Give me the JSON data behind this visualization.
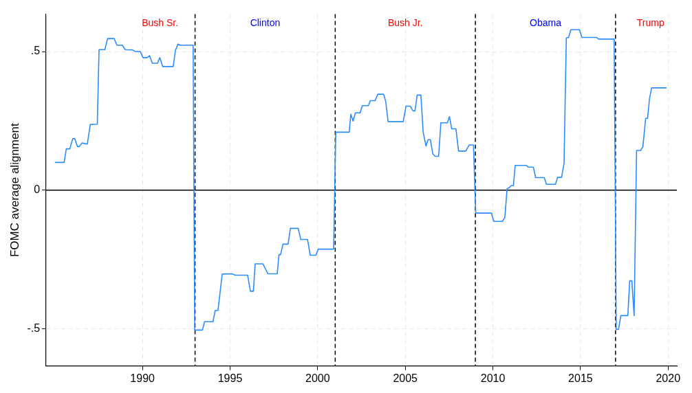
{
  "chart_data": {
    "type": "line",
    "ylabel": "FOMC average alignment",
    "xlim": [
      1984.5,
      2020.5
    ],
    "ylim": [
      -0.635,
      0.635
    ],
    "xticks": [
      1990,
      1995,
      2000,
      2005,
      2010,
      2015,
      2020
    ],
    "yticks": [
      {
        "value": -0.5,
        "label": "-.5"
      },
      0,
      {
        "value": 0.5,
        "label": ".5"
      }
    ],
    "grid": true,
    "legend": false,
    "marker": "none",
    "line_style": "solid",
    "ref_lines": [
      {
        "axis": "y",
        "value": 0,
        "color": "#000000",
        "line_style": "solid"
      },
      {
        "axis": "x",
        "value": 1993,
        "color": "#000000",
        "line_style": "dashed"
      },
      {
        "axis": "x",
        "value": 2001,
        "color": "#000000",
        "line_style": "dashed"
      },
      {
        "axis": "x",
        "value": 2009,
        "color": "#000000",
        "line_style": "dashed"
      },
      {
        "axis": "x",
        "value": 2017,
        "color": "#000000",
        "line_style": "dashed"
      }
    ],
    "annotations": [
      "Bush Sr.",
      "Clinton",
      "Bush Jr.",
      "Obama",
      "Trump"
    ],
    "series": [
      {
        "color": "#2a8cff",
        "x": [
          1985.0,
          1985.53,
          1985.65,
          1985.85,
          1986.02,
          1986.13,
          1986.29,
          1986.39,
          1986.55,
          1986.85,
          1987.02,
          1987.42,
          1987.52,
          1987.85,
          1988.01,
          1988.38,
          1988.54,
          1988.85,
          1989.01,
          1989.44,
          1989.58,
          1989.87,
          1990.03,
          1990.27,
          1990.4,
          1990.56,
          1990.86,
          1990.99,
          1991.15,
          1991.75,
          1991.88,
          1992.02,
          1992.15,
          1992.89,
          1992.98,
          1993.42,
          1993.54,
          1994.02,
          1994.15,
          1994.31,
          1994.55,
          1995.1,
          1995.3,
          1996.0,
          1996.16,
          1996.33,
          1996.43,
          1996.87,
          1997.16,
          1997.69,
          1997.79,
          1997.88,
          1998.02,
          1998.31,
          1998.44,
          1998.89,
          1999.03,
          1999.42,
          1999.57,
          1999.9,
          2000.03,
          2000.91,
          2001.03,
          2001.8,
          2001.89,
          2002.02,
          2002.15,
          2002.42,
          2002.55,
          2002.89,
          2003.01,
          2003.28,
          2003.43,
          2003.76,
          2003.88,
          2004.02,
          2004.88,
          2005.04,
          2005.28,
          2005.44,
          2005.55,
          2005.68,
          2005.89,
          2006.02,
          2006.18,
          2006.3,
          2006.43,
          2006.57,
          2006.7,
          2006.9,
          2007.03,
          2007.4,
          2007.52,
          2007.65,
          2007.89,
          2008.04,
          2008.45,
          2008.65,
          2008.89,
          2009.02,
          2009.92,
          2010.05,
          2010.54,
          2010.68,
          2010.81,
          2010.94,
          2011.03,
          2011.17,
          2011.27,
          2011.91,
          2012.01,
          2012.31,
          2012.44,
          2012.93,
          2013.06,
          2013.57,
          2013.69,
          2013.92,
          2014.06,
          2014.19,
          2014.32,
          2014.45,
          2014.94,
          2015.08,
          2015.91,
          2016.04,
          2016.92,
          2017.04,
          2017.17,
          2017.3,
          2017.7,
          2017.81,
          2017.93,
          2018.06,
          2018.2,
          2018.43,
          2018.56,
          2018.72,
          2018.83,
          2018.93,
          2019.06,
          2019.91
        ],
        "values": [
          0.1,
          0.1,
          0.149,
          0.149,
          0.186,
          0.186,
          0.157,
          0.157,
          0.17,
          0.166,
          0.237,
          0.238,
          0.507,
          0.507,
          0.547,
          0.547,
          0.523,
          0.523,
          0.507,
          0.506,
          0.5,
          0.5,
          0.478,
          0.478,
          0.485,
          0.458,
          0.458,
          0.478,
          0.446,
          0.446,
          0.504,
          0.527,
          0.523,
          0.523,
          -0.505,
          -0.505,
          -0.475,
          -0.475,
          -0.434,
          -0.434,
          -0.303,
          -0.302,
          -0.307,
          -0.307,
          -0.365,
          -0.365,
          -0.266,
          -0.266,
          -0.302,
          -0.302,
          -0.233,
          -0.233,
          -0.195,
          -0.195,
          -0.138,
          -0.138,
          -0.178,
          -0.178,
          -0.235,
          -0.235,
          -0.213,
          -0.213,
          0.209,
          0.209,
          0.274,
          0.249,
          0.279,
          0.279,
          0.305,
          0.305,
          0.323,
          0.323,
          0.346,
          0.346,
          0.321,
          0.247,
          0.247,
          0.303,
          0.303,
          0.286,
          0.286,
          0.343,
          0.343,
          0.209,
          0.159,
          0.182,
          0.182,
          0.131,
          0.122,
          0.122,
          0.243,
          0.243,
          0.265,
          0.221,
          0.221,
          0.141,
          0.141,
          0.163,
          0.163,
          -0.083,
          -0.083,
          -0.113,
          -0.113,
          -0.099,
          0.005,
          0.009,
          0.016,
          0.016,
          0.089,
          0.089,
          0.083,
          0.083,
          0.045,
          0.045,
          0.021,
          0.021,
          0.046,
          0.046,
          0.097,
          0.549,
          0.551,
          0.579,
          0.579,
          0.551,
          0.551,
          0.545,
          0.545,
          -0.503,
          -0.503,
          -0.453,
          -0.453,
          -0.327,
          -0.327,
          -0.453,
          0.143,
          0.143,
          0.157,
          0.259,
          0.259,
          0.327,
          0.369,
          0.369
        ]
      }
    ]
  }
}
